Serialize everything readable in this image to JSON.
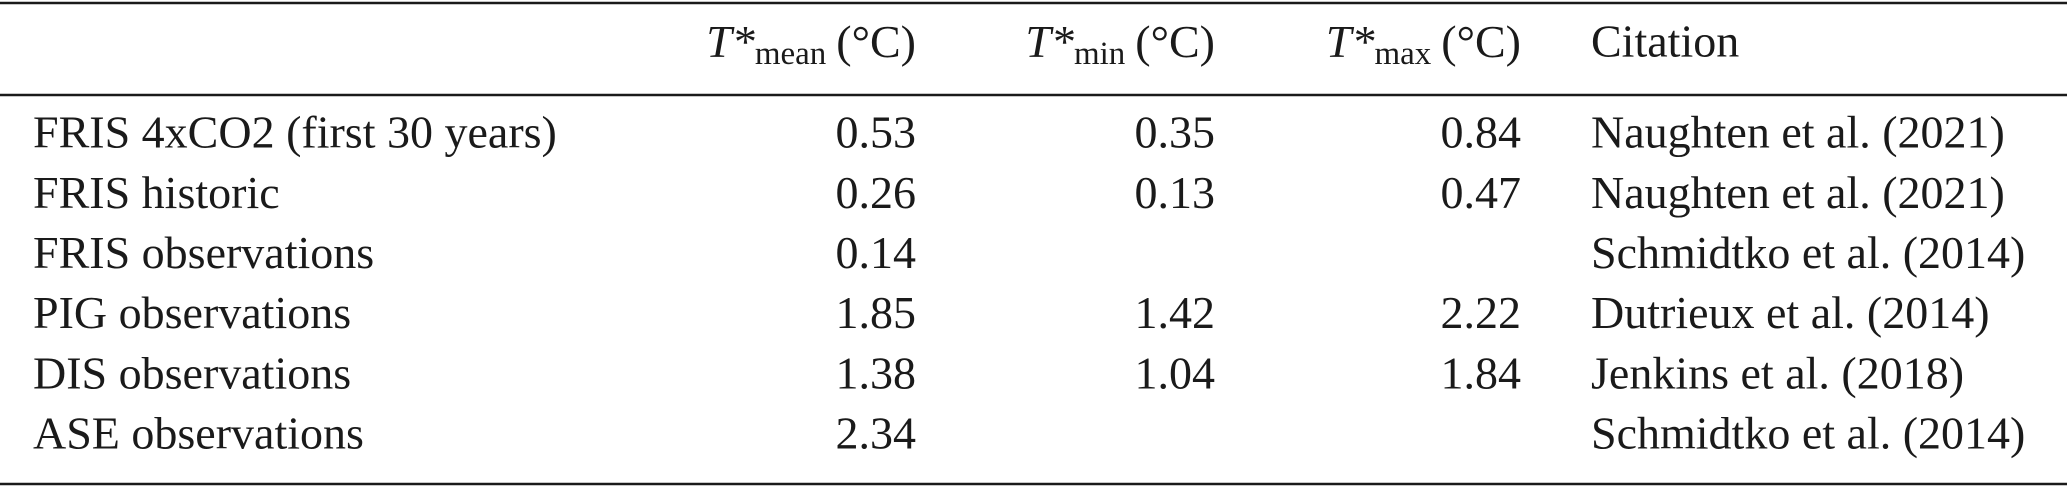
{
  "table": {
    "header": [
      null,
      {
        "symbol": "T*",
        "subscript": "mean",
        "unit": "(°C)"
      },
      {
        "symbol": "T*",
        "subscript": "min",
        "unit": "(°C)"
      },
      {
        "symbol": "T*",
        "subscript": "max",
        "unit": "(°C)"
      },
      "Citation"
    ],
    "rows": [
      [
        "FRIS 4xCO2 (first 30 years)",
        "0.53",
        "0.35",
        "0.84",
        "Naughten et al. (2021)"
      ],
      [
        "FRIS historic",
        "0.26",
        "0.13",
        "0.47",
        "Naughten et al. (2021)"
      ],
      [
        "FRIS observations",
        "0.14",
        null,
        null,
        "Schmidtko et al. (2014)"
      ],
      [
        "PIG observations",
        "1.85",
        "1.42",
        "2.22",
        "Dutrieux et al. (2014)"
      ],
      [
        "DIS observations",
        "1.38",
        "1.04",
        "1.84",
        "Jenkins et al. (2018)"
      ],
      [
        "ASE observations",
        "2.34",
        null,
        null,
        "Schmidtko et al. (2014)"
      ]
    ]
  }
}
